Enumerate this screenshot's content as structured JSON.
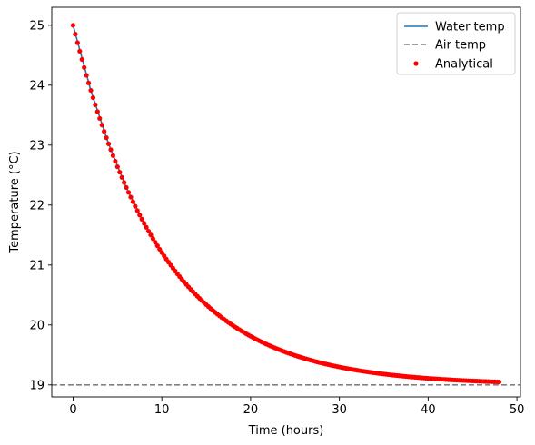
{
  "chart_data": {
    "type": "line",
    "title": "",
    "xlabel": "Time (hours)",
    "ylabel": "Temperature (°C)",
    "xlim": [
      -2.4,
      50.4
    ],
    "ylim": [
      18.8,
      25.3
    ],
    "x_ticks": [
      0,
      10,
      20,
      30,
      40,
      50
    ],
    "y_ticks": [
      19,
      20,
      21,
      22,
      23,
      24,
      25
    ],
    "grid": false,
    "legend_position": "top-right",
    "model": {
      "initial_temp": 25,
      "air_temp": 19,
      "time_constant_hours": 10,
      "t_start": 0,
      "t_end": 48,
      "analytical_step_hours": 0.25
    },
    "series": [
      {
        "name": "Water temp",
        "kind": "line",
        "color": "#1f77b4",
        "x": [
          0,
          2,
          4,
          6,
          8,
          10,
          12,
          14,
          16,
          18,
          20,
          22,
          24,
          26,
          28,
          30,
          32,
          34,
          36,
          38,
          40,
          42,
          44,
          46,
          48
        ],
        "y": [
          25.0,
          23.91,
          23.02,
          22.29,
          21.7,
          21.21,
          20.81,
          20.48,
          20.21,
          19.99,
          19.81,
          19.66,
          19.54,
          19.45,
          19.37,
          19.3,
          19.24,
          19.2,
          19.16,
          19.13,
          19.11,
          19.09,
          19.07,
          19.06,
          19.05
        ]
      },
      {
        "name": "Air temp",
        "kind": "hline",
        "color": "#808080",
        "y": 19
      },
      {
        "name": "Analytical",
        "kind": "scatter",
        "color": "#ff0000"
      }
    ]
  }
}
